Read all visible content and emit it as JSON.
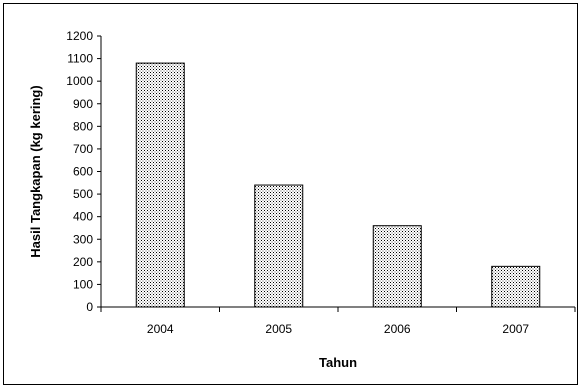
{
  "chart_data": {
    "type": "bar",
    "categories": [
      "2004",
      "2005",
      "2006",
      "2007"
    ],
    "values": [
      1080,
      540,
      360,
      180
    ],
    "title": "",
    "xlabel": "Tahun",
    "ylabel": "Hasil Tangkapan (kg kering)",
    "ylim": [
      0,
      1200
    ],
    "ytick_step": 100,
    "y_ticks": [
      "0",
      "100",
      "200",
      "300",
      "400",
      "500",
      "600",
      "700",
      "800",
      "900",
      "1000",
      "1100",
      "1200"
    ],
    "grid": false,
    "legend": "none",
    "bar_fill": "dotted-pattern",
    "colors": {
      "bar_dots": "#000000",
      "bar_bg": "#ffffff",
      "axis": "#000000"
    }
  }
}
